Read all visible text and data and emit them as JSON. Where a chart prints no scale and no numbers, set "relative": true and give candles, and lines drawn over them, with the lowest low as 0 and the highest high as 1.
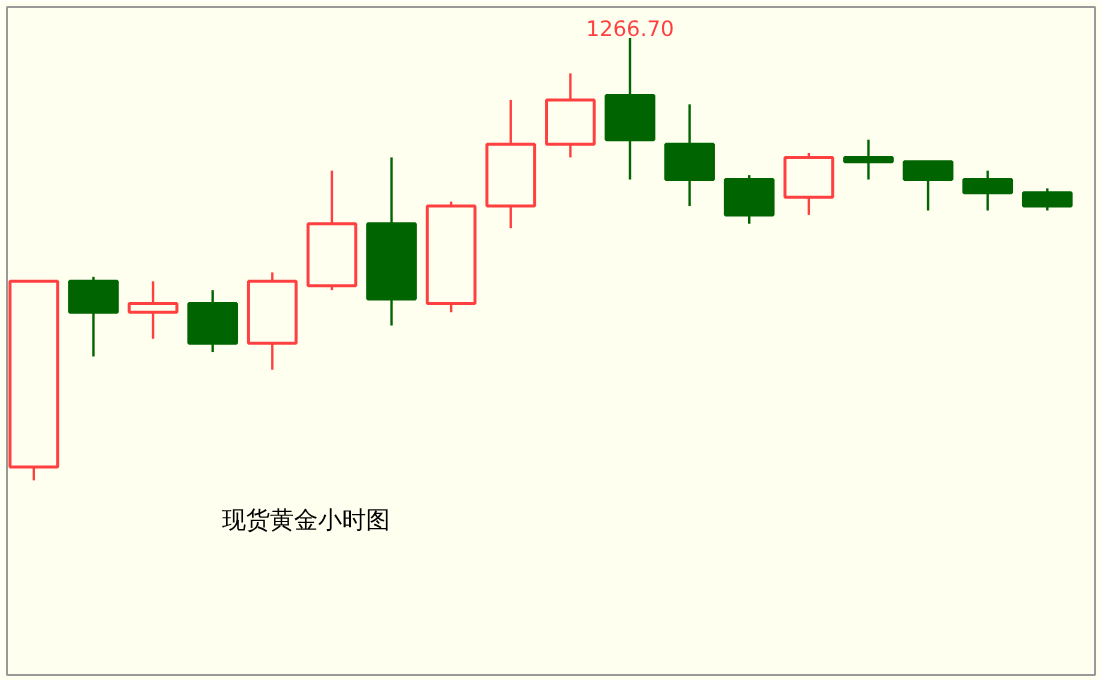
{
  "chart_data": {
    "type": "candlestick",
    "title": "现货黄金小时图",
    "relative": true,
    "categories": [
      null,
      null,
      null,
      null,
      null,
      null,
      null,
      null,
      null,
      null,
      null,
      null,
      null,
      null,
      null,
      null,
      null,
      null
    ],
    "ohlc": [
      [
        0.03,
        0.45,
        0,
        0.45
      ],
      [
        0.45,
        0.46,
        0.28,
        0.38
      ],
      [
        0.38,
        0.45,
        0.32,
        0.4
      ],
      [
        0.4,
        0.43,
        0.29,
        0.31
      ],
      [
        0.31,
        0.47,
        0.25,
        0.45
      ],
      [
        0.44,
        0.7,
        0.43,
        0.58
      ],
      [
        0.58,
        0.73,
        0.35,
        0.41
      ],
      [
        0.4,
        0.63,
        0.38,
        0.62
      ],
      [
        0.62,
        0.86,
        0.57,
        0.76
      ],
      [
        0.76,
        0.92,
        0.73,
        0.86
      ],
      [
        0.87,
        1,
        0.68,
        0.77
      ],
      [
        0.76,
        0.85,
        0.62,
        0.68
      ],
      [
        0.68,
        0.69,
        0.58,
        0.6
      ],
      [
        0.64,
        0.74,
        0.6,
        0.73
      ],
      [
        0.73,
        0.77,
        0.68,
        0.72
      ],
      [
        0.72,
        0.72,
        0.61,
        0.68
      ],
      [
        0.68,
        0.7,
        0.61,
        0.65
      ],
      [
        0.65,
        0.66,
        0.61,
        0.62
      ]
    ],
    "colors": [
      "#ff4040",
      "#006400",
      "#ff4040",
      "#006400",
      "#ff4040",
      "#ff4040",
      "#006400",
      "#ff4040",
      "#ff4040",
      "#ff4040",
      "#006400",
      "#006400",
      "#006400",
      "#ff4040",
      "#006400",
      "#006400",
      "#006400",
      "#006400"
    ],
    "annotations": [
      {
        "text": "1266.70",
        "y": 1
      }
    ]
  }
}
